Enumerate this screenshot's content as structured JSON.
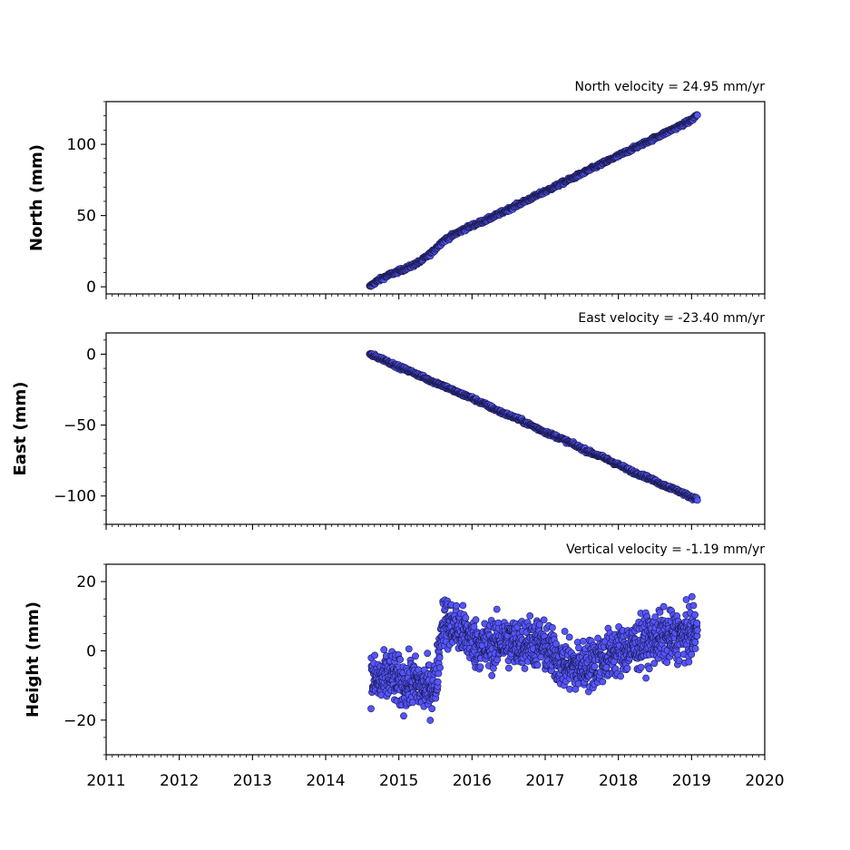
{
  "chart_data": [
    {
      "type": "scatter",
      "title": "North velocity = 24.95 mm/yr",
      "ylabel": "North (mm)",
      "xlim": [
        2011,
        2020
      ],
      "ylim": [
        -5,
        130
      ],
      "yticks": [
        0,
        50,
        100
      ],
      "ytick_labels": [
        "0",
        "50",
        "100"
      ],
      "color": "#5555ff",
      "series": [
        {
          "x": [
            2014.6,
            2014.7,
            2014.85,
            2015.0,
            2015.15,
            2015.3,
            2015.45,
            2015.6,
            2015.8,
            2016.0,
            2016.2,
            2016.4,
            2016.6,
            2016.8,
            2017.0,
            2017.2,
            2017.4,
            2017.6,
            2017.8,
            2018.0,
            2018.2,
            2018.4,
            2018.6,
            2018.8,
            2019.0,
            2019.08
          ],
          "y": [
            0,
            4,
            8,
            11,
            14,
            18,
            24,
            32,
            38,
            43,
            47,
            52,
            57,
            62,
            67,
            72,
            77,
            82,
            87,
            92,
            97,
            102,
            107,
            112,
            117,
            121
          ]
        }
      ]
    },
    {
      "type": "scatter",
      "title": "East velocity = -23.40 mm/yr",
      "ylabel": "East (mm)",
      "xlim": [
        2011,
        2020
      ],
      "ylim": [
        -120,
        15
      ],
      "yticks": [
        0,
        -50,
        -100
      ],
      "ytick_labels": [
        "0",
        "−50",
        "−100"
      ],
      "color": "#5555ff",
      "series": [
        {
          "x": [
            2014.6,
            2014.8,
            2015.0,
            2015.2,
            2015.4,
            2015.6,
            2015.8,
            2016.0,
            2016.2,
            2016.4,
            2016.6,
            2016.8,
            2017.0,
            2017.2,
            2017.4,
            2017.6,
            2017.8,
            2018.0,
            2018.2,
            2018.4,
            2018.6,
            2018.8,
            2019.0,
            2019.08
          ],
          "y": [
            0,
            -4,
            -9,
            -13,
            -18,
            -22,
            -27,
            -31,
            -36,
            -41,
            -45,
            -50,
            -55,
            -59,
            -64,
            -69,
            -73,
            -78,
            -83,
            -87,
            -92,
            -96,
            -101,
            -102
          ]
        }
      ]
    },
    {
      "type": "scatter",
      "title": "Vertical velocity = -1.19 mm/yr",
      "ylabel": "Height (mm)",
      "xlim": [
        2011,
        2020
      ],
      "ylim": [
        -30,
        25
      ],
      "yticks": [
        20,
        0,
        -20
      ],
      "ytick_labels": [
        "20",
        "0",
        "−20"
      ],
      "xticks": [
        2011,
        2012,
        2013,
        2014,
        2015,
        2016,
        2017,
        2018,
        2019,
        2020
      ],
      "xtick_labels": [
        "2011",
        "2012",
        "2013",
        "2014",
        "2015",
        "2016",
        "2017",
        "2018",
        "2019",
        "2020"
      ],
      "color": "#5555ff",
      "series": [
        {
          "x": [
            2014.62,
            2014.75,
            2014.9,
            2015.05,
            2015.2,
            2015.35,
            2015.5,
            2015.6,
            2015.75,
            2015.9,
            2016.05,
            2016.2,
            2016.4,
            2016.6,
            2016.8,
            2017.0,
            2017.2,
            2017.4,
            2017.6,
            2017.8,
            2018.0,
            2018.2,
            2018.4,
            2018.6,
            2018.8,
            2019.0,
            2019.08
          ],
          "y": [
            -8,
            -9,
            -7,
            -10,
            -9,
            -11,
            -10,
            9,
            7,
            5,
            2,
            1,
            3,
            2,
            3,
            1,
            -3,
            -5,
            -4,
            -2,
            0,
            1,
            3,
            4,
            4,
            5,
            6
          ]
        }
      ]
    }
  ]
}
